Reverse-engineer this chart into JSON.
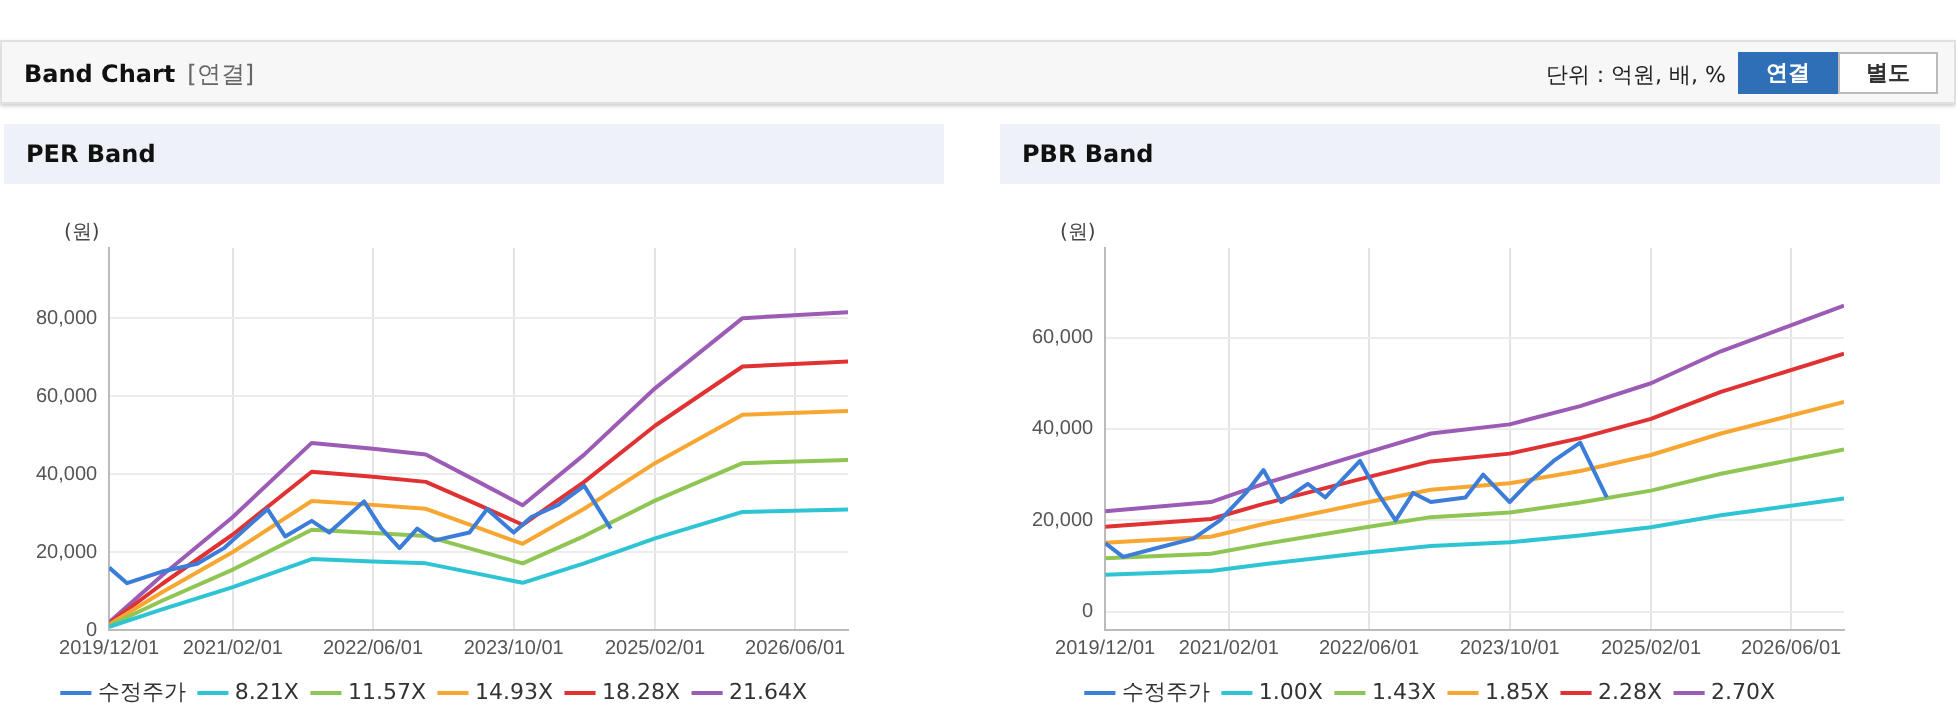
{
  "chart_data": [
    {
      "type": "line",
      "title": "PER Band",
      "ylabel": "(원)",
      "annotations": [
        "Band Chart",
        "[연결]",
        "단위 : 억원, 배, %",
        "연결",
        "별도"
      ],
      "legend": "bottom",
      "grid": true,
      "marker": "none",
      "line_style": "solid",
      "xlim": [
        "2019-12-01",
        "2026-12-01"
      ],
      "xticks": [
        {
          "value": "2019-12-01",
          "label": "2019/12/01"
        },
        {
          "value": "2021-02-01",
          "label": "2021/02/01"
        },
        {
          "value": "2022-06-01",
          "label": "2022/06/01"
        },
        {
          "value": "2023-10-01",
          "label": "2023/10/01"
        },
        {
          "value": "2025-02-01",
          "label": "2025/02/01"
        },
        {
          "value": "2026-06-01",
          "label": "2026/06/01"
        }
      ],
      "ylim": [
        0,
        98000
      ],
      "yticks": [
        {
          "value": 0,
          "label": "0"
        },
        {
          "value": 20000,
          "label": "20,000"
        },
        {
          "value": 40000,
          "label": "40,000"
        },
        {
          "value": 60000,
          "label": "60,000"
        },
        {
          "value": 80000,
          "label": "80,000"
        }
      ],
      "series": [
        {
          "name": "수정주가",
          "color": "#3b7dd8",
          "x": [
            "2019-12",
            "2020-02",
            "2020-06",
            "2020-10",
            "2021-01",
            "2021-04",
            "2021-06",
            "2021-08",
            "2021-11",
            "2022-01",
            "2022-05",
            "2022-07",
            "2022-09",
            "2022-11",
            "2023-01",
            "2023-05",
            "2023-07",
            "2023-10",
            "2023-12",
            "2024-03",
            "2024-06",
            "2024-09"
          ],
          "values": [
            16000,
            12000,
            15000,
            17000,
            21000,
            27000,
            31000,
            24000,
            28000,
            25000,
            33000,
            26000,
            21000,
            26000,
            23000,
            25000,
            31000,
            25000,
            29000,
            32000,
            37000,
            26000
          ]
        },
        {
          "name": "8.21X",
          "color": "#2ec4d4",
          "x": [
            "2019-12",
            "2020-06",
            "2021-02",
            "2021-11",
            "2022-06",
            "2022-12",
            "2023-06",
            "2023-11",
            "2024-06",
            "2025-02",
            "2025-12",
            "2026-12"
          ],
          "values": [
            800,
            5300,
            11000,
            18200,
            17600,
            17100,
            14400,
            12100,
            17100,
            23500,
            30300,
            30900
          ]
        },
        {
          "name": "11.57X",
          "color": "#8fc552",
          "x": [
            "2019-12",
            "2020-06",
            "2021-02",
            "2021-11",
            "2022-06",
            "2022-12",
            "2023-06",
            "2023-11",
            "2024-06",
            "2025-02",
            "2025-12",
            "2026-12"
          ],
          "values": [
            1100,
            7500,
            15500,
            25700,
            24900,
            24100,
            20300,
            17100,
            24100,
            33200,
            42800,
            43600
          ]
        },
        {
          "name": "14.93X",
          "color": "#f7a731",
          "x": [
            "2019-12",
            "2020-06",
            "2021-02",
            "2021-11",
            "2022-06",
            "2022-12",
            "2023-06",
            "2023-11",
            "2024-06",
            "2025-02",
            "2025-12",
            "2026-12"
          ],
          "values": [
            1400,
            9700,
            20000,
            33100,
            32100,
            31100,
            26200,
            22100,
            31100,
            42800,
            55200,
            56200
          ]
        },
        {
          "name": "18.28X",
          "color": "#e03232",
          "x": [
            "2019-12",
            "2020-06",
            "2021-02",
            "2021-11",
            "2022-06",
            "2022-12",
            "2023-06",
            "2023-11",
            "2024-06",
            "2025-02",
            "2025-12",
            "2026-12"
          ],
          "values": [
            1700,
            11800,
            24500,
            40600,
            39300,
            38000,
            32100,
            27000,
            38000,
            52400,
            67600,
            68900
          ]
        },
        {
          "name": "21.64X",
          "color": "#9c5bb5",
          "x": [
            "2019-12",
            "2020-06",
            "2021-02",
            "2021-11",
            "2022-06",
            "2022-12",
            "2023-06",
            "2023-11",
            "2024-06",
            "2025-02",
            "2025-12",
            "2026-12"
          ],
          "values": [
            2000,
            14000,
            29000,
            48000,
            46500,
            45000,
            38000,
            32000,
            45000,
            62000,
            80000,
            81500
          ]
        }
      ]
    },
    {
      "type": "line",
      "title": "PBR Band",
      "ylabel": "(원)",
      "legend": "bottom",
      "grid": true,
      "marker": "none",
      "line_style": "solid",
      "xlim": [
        "2019-12-01",
        "2026-12-01"
      ],
      "xticks": [
        {
          "value": "2019-12-01",
          "label": "2019/12/01"
        },
        {
          "value": "2021-02-01",
          "label": "2021/02/01"
        },
        {
          "value": "2022-06-01",
          "label": "2022/06/01"
        },
        {
          "value": "2023-10-01",
          "label": "2023/10/01"
        },
        {
          "value": "2025-02-01",
          "label": "2025/02/01"
        },
        {
          "value": "2026-06-01",
          "label": "2026/06/01"
        }
      ],
      "ylim": [
        -4000,
        79600
      ],
      "yticks": [
        {
          "value": 0,
          "label": "0"
        },
        {
          "value": 20000,
          "label": "20,000"
        },
        {
          "value": 40000,
          "label": "40,000"
        },
        {
          "value": 60000,
          "label": "60,000"
        }
      ],
      "series": [
        {
          "name": "수정주가",
          "color": "#3b7dd8",
          "x": [
            "2019-12",
            "2020-02",
            "2020-06",
            "2020-10",
            "2021-01",
            "2021-04",
            "2021-06",
            "2021-08",
            "2021-11",
            "2022-01",
            "2022-05",
            "2022-07",
            "2022-09",
            "2022-11",
            "2023-01",
            "2023-05",
            "2023-07",
            "2023-10",
            "2023-12",
            "2024-03",
            "2024-06",
            "2024-09"
          ],
          "values": [
            15000,
            12000,
            14000,
            16000,
            20000,
            26000,
            31000,
            24000,
            28000,
            25000,
            33000,
            26000,
            20000,
            26000,
            24000,
            25000,
            30000,
            24000,
            28000,
            33000,
            37000,
            25000
          ]
        },
        {
          "name": "1.00X",
          "color": "#2ec4d4",
          "x": [
            "2019-12",
            "2020-12",
            "2021-06",
            "2022-06",
            "2023-01",
            "2023-10",
            "2024-06",
            "2025-02",
            "2025-10",
            "2026-12"
          ],
          "values": [
            8100,
            8900,
            10400,
            13000,
            14400,
            15200,
            16700,
            18500,
            21100,
            24800
          ]
        },
        {
          "name": "1.43X",
          "color": "#8fc552",
          "x": [
            "2019-12",
            "2020-12",
            "2021-06",
            "2022-06",
            "2023-01",
            "2023-10",
            "2024-06",
            "2025-02",
            "2025-10",
            "2026-12"
          ],
          "values": [
            11700,
            12700,
            14800,
            18600,
            20700,
            21700,
            23900,
            26500,
            30200,
            35500
          ]
        },
        {
          "name": "1.85X",
          "color": "#f7a731",
          "x": [
            "2019-12",
            "2020-12",
            "2021-06",
            "2022-06",
            "2023-01",
            "2023-10",
            "2024-06",
            "2025-02",
            "2025-10",
            "2026-12"
          ],
          "values": [
            15100,
            16400,
            19200,
            24000,
            26700,
            28100,
            30800,
            34300,
            39000,
            45900
          ]
        },
        {
          "name": "2.28X",
          "color": "#e03232",
          "x": [
            "2019-12",
            "2020-12",
            "2021-06",
            "2022-06",
            "2023-01",
            "2023-10",
            "2024-06",
            "2025-02",
            "2025-10",
            "2026-12"
          ],
          "values": [
            18600,
            20300,
            23600,
            29500,
            32900,
            34600,
            38000,
            42200,
            48100,
            56500
          ]
        },
        {
          "name": "2.70X",
          "color": "#9c5bb5",
          "x": [
            "2019-12",
            "2020-12",
            "2021-06",
            "2022-06",
            "2023-01",
            "2023-10",
            "2024-06",
            "2025-02",
            "2025-10",
            "2026-12"
          ],
          "values": [
            22000,
            24000,
            28000,
            35000,
            39000,
            41000,
            45000,
            50000,
            57000,
            67000
          ]
        }
      ]
    }
  ]
}
